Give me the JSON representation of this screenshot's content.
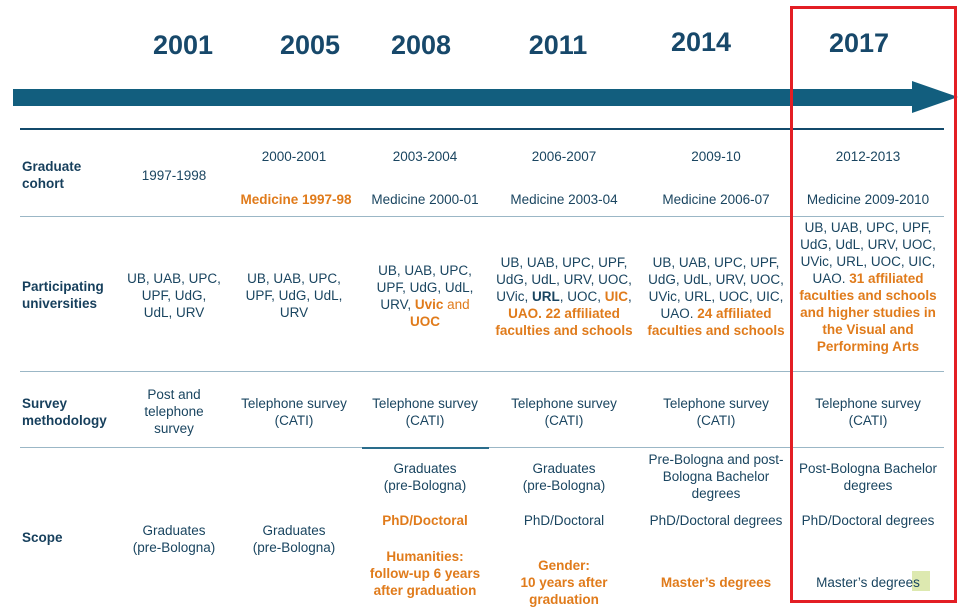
{
  "years": [
    "2001",
    "2005",
    "2008",
    "2011",
    "2014",
    "2017"
  ],
  "row_labels": {
    "cohort": [
      "Graduate",
      "cohort"
    ],
    "universities": [
      "Participating",
      "universities"
    ],
    "methodology": [
      "Survey",
      "methodology"
    ],
    "scope": "Scope"
  },
  "cohort": [
    "1997-1998",
    "2000-2001",
    "2003-2004",
    "2006-2007",
    "2009-10",
    "2012-2013"
  ],
  "medicine": [
    "Medicine 1997-98",
    "Medicine 2000-01",
    "Medicine 2003-04",
    "Medicine 2006-07",
    "Medicine 2009-2010"
  ],
  "universities": {
    "c2001": [
      "UB, UAB, UPC,",
      "UPF, UdG,",
      "UdL, URV"
    ],
    "c2005": [
      "UB, UAB, UPC,",
      "UPF, UdG, UdL,",
      "URV"
    ],
    "c2008": {
      "l1": "UB, UAB, UPC,",
      "l2": "UPF, UdG, UdL,",
      "l3a": "URV, ",
      "l3b": "Uvic",
      "l3c": " and",
      "l4": "UOC"
    },
    "c2011": {
      "l1": "UB, UAB, UPC, UPF,",
      "l2": "UdG, UdL, URV, UOC,",
      "l3a": "UVic, ",
      "l3b": "URL",
      "l3c": ", UOC, ",
      "l3d": "UIC",
      "l3e": ",",
      "l4a": "UAO",
      "l4b": ". 22 affiliated",
      "l5": "faculties and schools"
    },
    "c2014": {
      "l1": "UB, UAB, UPC, UPF,",
      "l2": "UdG, UdL, URV, UOC,",
      "l3": "UVic, URL, UOC, UIC,",
      "l4a": "UAO. ",
      "l4b": "24 affiliated",
      "l5": "faculties and schools"
    },
    "c2017": {
      "l1": "UB, UAB, UPC, UPF,",
      "l2": "UdG, UdL, URV, UOC,",
      "l3": "UVic, URL, UOC, UIC,",
      "l4a": "UAO. ",
      "l4b": "31 affiliated",
      "l5": "faculties and schools",
      "l6": "and higher studies in",
      "l7": "the Visual and",
      "l8": "Performing Arts"
    }
  },
  "methodology": {
    "c2001": [
      "Post and",
      "telephone",
      "survey"
    ],
    "cati": [
      "Telephone survey",
      "(CATI)"
    ]
  },
  "scope": {
    "c2001": [
      "Graduates",
      "(pre-Bologna)"
    ],
    "c2005": [
      "Graduates",
      "(pre-Bologna)"
    ],
    "c2008": {
      "grad": [
        "Graduates",
        "(pre-Bologna)"
      ],
      "phd": "PhD/Doctoral",
      "hum": [
        "Humanities:",
        "follow-up 6 years",
        "after graduation"
      ]
    },
    "c2011": {
      "grad": [
        "Graduates",
        "(pre-Bologna)"
      ],
      "phd": "PhD/Doctoral",
      "gender": [
        "Gender:",
        "10 years after",
        "graduation"
      ]
    },
    "c2014": {
      "bach": [
        "Pre-Bologna and post-",
        "Bologna Bachelor",
        "degrees"
      ],
      "phd": "PhD/Doctoral degrees",
      "master": "Master’s degrees"
    },
    "c2017": {
      "bach": [
        "Post-Bologna Bachelor",
        "degrees"
      ],
      "phd": "PhD/Doctoral degrees",
      "master": "Master’s degrees"
    }
  },
  "colors": {
    "navy": "#17486a",
    "timeline": "#125e7e",
    "accent": "#e07b1b",
    "highlight": "#e31e24"
  }
}
